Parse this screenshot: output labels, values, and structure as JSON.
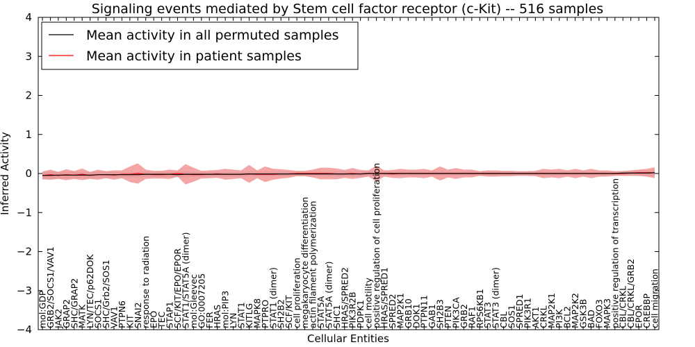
{
  "chart_data": {
    "type": "line",
    "title": "Signaling events mediated by Stem cell factor receptor (c-Kit) -- 516 samples",
    "xlabel": "Cellular Entities",
    "ylabel": "Inferred Activity",
    "ylim": [
      -4,
      4
    ],
    "yticks": [
      -4,
      -3,
      -2,
      -1,
      0,
      1,
      2,
      3,
      4
    ],
    "grid": false,
    "legend_position": "top-left",
    "categories": [
      "mol:GDP",
      "GRB2/SOCS1/VAV1",
      "JAK2",
      "GRAP2",
      "SHC/GRAP2",
      "MATK",
      "LYN/TEC/p62DOK",
      "SOCS1",
      "SHC/Grb2/SOS1",
      "VAV1",
      "PTPN6",
      "KIT",
      "SNAI2",
      "response to radiation",
      "EPO",
      "TEC",
      "STAP1",
      "SCF/KIT/EPO/EPOR",
      "STAT1/STAT5A (dimer)",
      "mol:Gleevec",
      "GO:0007205",
      "FER",
      "HRAS",
      "mol:PIP3",
      "LYN",
      "STAT1",
      "KITLG",
      "MAPK8",
      "PTPRO",
      "STAT1 (dimer)",
      "SH2B2",
      "SCF/KIT",
      "cell proliferation",
      "megakaryocyte differentiation",
      "actin filament polymerization",
      "STAT5A",
      "STAT5A (dimer)",
      "SHC1",
      "HRAS/SPRED2",
      "PIK3R2B",
      "PDPK1",
      "cell motility",
      "positive regulation of cell proliferation",
      "HRAS/SPRED1",
      "SPRED2",
      "MAP2K1",
      "GRB10",
      "DOK1",
      "PTPN11",
      "GAB1",
      "SH2B3",
      "PTEN",
      "PIK3CA",
      "GRB2",
      "RAF1",
      "RPS6KB1",
      "STAT3",
      "STAT3 (dimer)",
      "CBL",
      "SOS1",
      "SPRED1",
      "PIK3R1",
      "AKT1",
      "CRKL",
      "MAP2K1",
      "PI3K",
      "BCL2",
      "MAP2K2",
      "GSK3B",
      "BAD",
      "FOXO3",
      "MAPK3",
      "positive regulation of transcription",
      "CBL/CRKL",
      "CBL/CRKL/GRB2",
      "EPOR",
      "CREBBP",
      "cell migration"
    ],
    "series": [
      {
        "name": "Mean activity in all permuted samples",
        "color": "#000000",
        "band_color": "#c8c8c8",
        "values": [
          -0.05,
          -0.05,
          -0.04,
          -0.04,
          -0.04,
          -0.04,
          -0.04,
          -0.03,
          -0.03,
          -0.03,
          -0.03,
          -0.03,
          -0.03,
          -0.02,
          -0.02,
          -0.02,
          -0.02,
          -0.03,
          -0.02,
          -0.02,
          -0.02,
          -0.02,
          -0.02,
          -0.02,
          -0.02,
          -0.02,
          -0.01,
          -0.01,
          -0.01,
          -0.01,
          -0.01,
          -0.01,
          -0.01,
          -0.01,
          -0.01,
          -0.01,
          -0.01,
          -0.01,
          -0.01,
          -0.01,
          -0.01,
          0.0,
          0.0,
          0.0,
          0.0,
          0.0,
          0.0,
          0.0,
          0.0,
          0.0,
          0.0,
          0.0,
          0.0,
          0.0,
          0.0,
          0.0,
          0.0,
          0.0,
          0.0,
          0.0,
          0.0,
          0.0,
          0.0,
          0.0,
          0.0,
          0.0,
          0.0,
          0.0,
          0.0,
          0.0,
          0.0,
          0.0,
          0.0,
          0.01,
          0.01,
          0.01,
          0.01,
          0.02
        ],
        "spread": [
          0.1,
          0.1,
          0.09,
          0.09,
          0.09,
          0.08,
          0.08,
          0.08,
          0.08,
          0.08,
          0.07,
          0.07,
          0.07,
          0.07,
          0.07,
          0.07,
          0.07,
          0.07,
          0.07,
          0.06,
          0.06,
          0.06,
          0.06,
          0.06,
          0.06,
          0.06,
          0.06,
          0.06,
          0.06,
          0.06,
          0.06,
          0.06,
          0.06,
          0.06,
          0.06,
          0.06,
          0.06,
          0.06,
          0.06,
          0.06,
          0.06,
          0.06,
          0.06,
          0.05,
          0.05,
          0.05,
          0.05,
          0.05,
          0.05,
          0.05,
          0.05,
          0.05,
          0.05,
          0.05,
          0.05,
          0.05,
          0.05,
          0.05,
          0.05,
          0.05,
          0.05,
          0.05,
          0.05,
          0.05,
          0.05,
          0.05,
          0.05,
          0.05,
          0.05,
          0.05,
          0.05,
          0.05,
          0.05,
          0.06,
          0.06,
          0.07,
          0.07,
          0.08
        ]
      },
      {
        "name": "Mean activity in patient samples",
        "color": "#ff0000",
        "band_color": "#f08080",
        "values": [
          -0.05,
          -0.03,
          -0.05,
          -0.03,
          -0.04,
          -0.02,
          -0.05,
          -0.03,
          -0.03,
          -0.04,
          -0.02,
          -0.02,
          0.0,
          -0.02,
          -0.03,
          -0.03,
          -0.02,
          0.0,
          -0.02,
          -0.03,
          -0.03,
          -0.02,
          -0.01,
          -0.02,
          -0.02,
          -0.02,
          -0.01,
          -0.02,
          -0.02,
          -0.02,
          -0.01,
          -0.01,
          0.0,
          0.0,
          0.0,
          0.0,
          0.0,
          -0.01,
          -0.01,
          0.0,
          -0.01,
          0.0,
          0.0,
          0.0,
          -0.01,
          0.0,
          0.0,
          0.0,
          0.0,
          0.0,
          0.0,
          0.0,
          0.0,
          0.0,
          0.0,
          0.0,
          0.0,
          0.0,
          0.0,
          0.0,
          0.0,
          0.0,
          0.0,
          0.0,
          0.0,
          0.0,
          0.0,
          0.0,
          0.0,
          0.0,
          0.0,
          0.0,
          0.0,
          0.0,
          0.01,
          0.02,
          0.02,
          0.02
        ],
        "spread": [
          0.1,
          0.13,
          0.09,
          0.14,
          0.1,
          0.15,
          0.09,
          0.13,
          0.09,
          0.12,
          0.1,
          0.2,
          0.26,
          0.12,
          0.1,
          0.1,
          0.12,
          0.08,
          0.26,
          0.18,
          0.1,
          0.1,
          0.1,
          0.14,
          0.12,
          0.1,
          0.23,
          0.1,
          0.2,
          0.14,
          0.12,
          0.1,
          0.07,
          0.07,
          0.1,
          0.15,
          0.15,
          0.14,
          0.1,
          0.14,
          0.1,
          0.08,
          0.2,
          0.08,
          0.1,
          0.12,
          0.1,
          0.1,
          0.12,
          0.08,
          0.18,
          0.1,
          0.14,
          0.1,
          0.1,
          0.06,
          0.08,
          0.08,
          0.07,
          0.07,
          0.06,
          0.06,
          0.07,
          0.12,
          0.1,
          0.12,
          0.08,
          0.12,
          0.08,
          0.12,
          0.08,
          0.08,
          0.06,
          0.06,
          0.07,
          0.08,
          0.1,
          0.14
        ]
      }
    ]
  }
}
